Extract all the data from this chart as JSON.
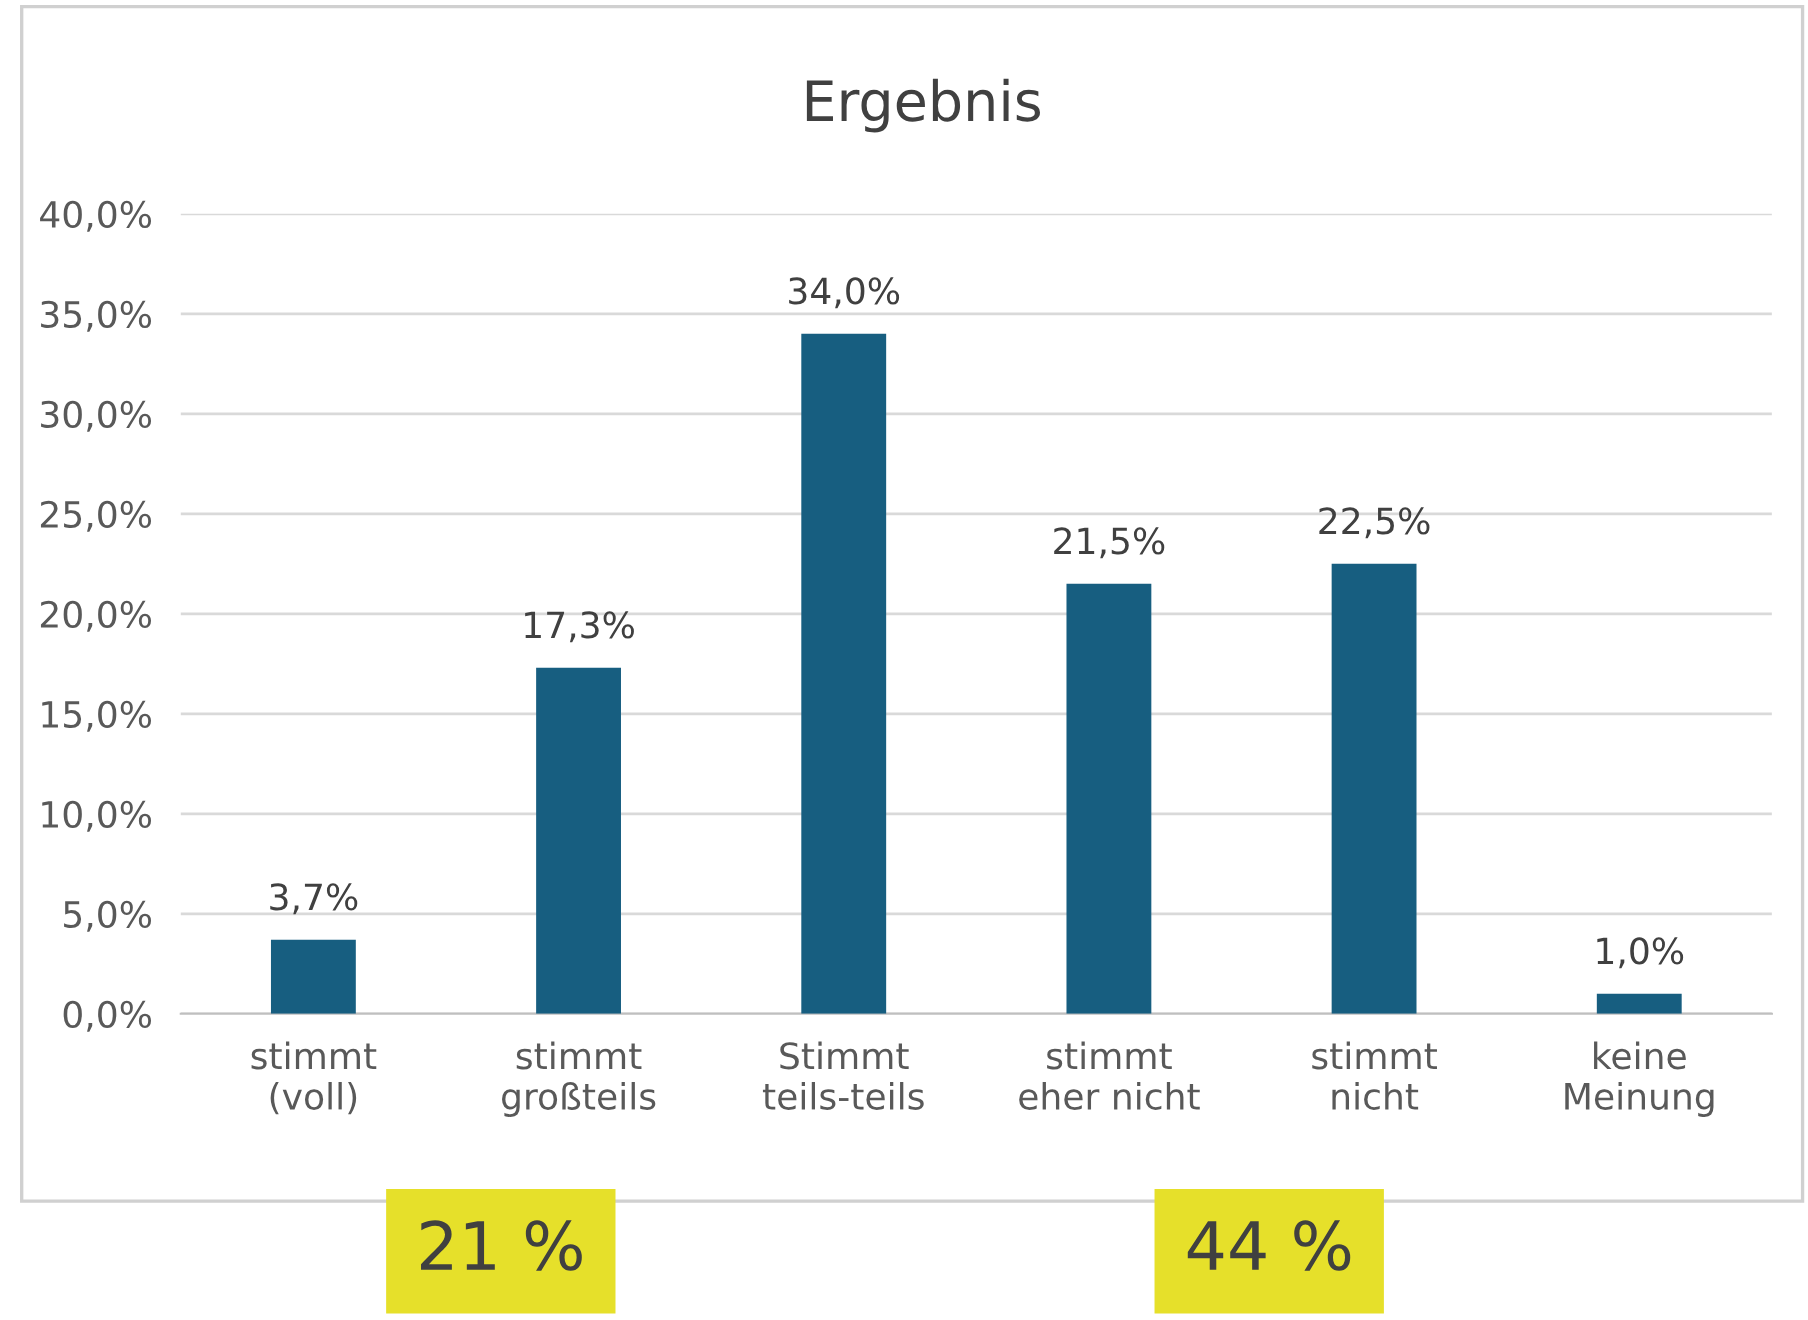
{
  "chart_data": {
    "type": "bar",
    "title": "Ergebnis",
    "categories": [
      "stimmt\n(voll)",
      "stimmt\ngroßteils",
      "Stimmt\nteils-teils",
      "stimmt\neher nicht",
      "stimmt\nnicht",
      "keine\nMeinung"
    ],
    "values": [
      3.7,
      17.3,
      34.0,
      21.5,
      22.5,
      1.0
    ],
    "value_labels": [
      "3,7%",
      "17,3%",
      "34,0%",
      "21,5%",
      "22,5%",
      "1,0%"
    ],
    "color": "#175e80",
    "ylim": [
      0,
      40
    ],
    "yticks": [
      {
        "value": 0,
        "label": "0,0%"
      },
      {
        "value": 5,
        "label": "5,0%"
      },
      {
        "value": 10,
        "label": "10,0%"
      },
      {
        "value": 15,
        "label": "15,0%"
      },
      {
        "value": 20,
        "label": "20,0%"
      },
      {
        "value": 25,
        "label": "25,0%"
      },
      {
        "value": 30,
        "label": "30,0%"
      },
      {
        "value": 35,
        "label": "35,0%"
      },
      {
        "value": 40,
        "label": "40,0%"
      }
    ],
    "grid": "y",
    "annotations": [
      "21 %",
      "44 %"
    ]
  }
}
